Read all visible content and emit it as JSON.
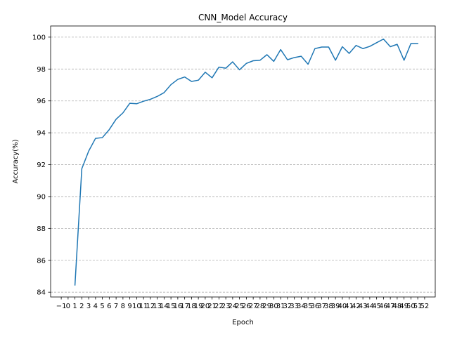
{
  "chart_data": {
    "type": "line",
    "title": "CNN_Model Accuracy",
    "xlabel": "Epoch",
    "ylabel": "Accuracy(%)",
    "xlim": [
      -2.55,
      53.55
    ],
    "ylim": [
      83.7,
      100.7
    ],
    "xticks": [
      -1,
      0,
      1,
      2,
      3,
      4,
      5,
      6,
      7,
      8,
      9,
      10,
      11,
      12,
      13,
      14,
      15,
      16,
      17,
      18,
      19,
      20,
      21,
      22,
      23,
      24,
      25,
      26,
      27,
      28,
      29,
      30,
      31,
      32,
      33,
      34,
      35,
      36,
      37,
      38,
      39,
      40,
      41,
      42,
      43,
      44,
      45,
      46,
      47,
      48,
      49,
      50,
      51,
      52
    ],
    "xtick_labels": [
      "−1",
      "0",
      "1",
      "2",
      "3",
      "4",
      "5",
      "6",
      "7",
      "8",
      "9",
      "10",
      "11",
      "12",
      "13",
      "14",
      "15",
      "16",
      "17",
      "18",
      "19",
      "20",
      "21",
      "22",
      "23",
      "24",
      "25",
      "26",
      "27",
      "28",
      "29",
      "30",
      "31",
      "32",
      "33",
      "34",
      "35",
      "36",
      "37",
      "38",
      "39",
      "40",
      "41",
      "42",
      "43",
      "44",
      "45",
      "46",
      "47",
      "48",
      "49",
      "50",
      "51",
      "52"
    ],
    "yticks": [
      84,
      86,
      88,
      90,
      92,
      94,
      96,
      98,
      100
    ],
    "ytick_labels": [
      "84",
      "86",
      "88",
      "90",
      "92",
      "94",
      "96",
      "98",
      "100"
    ],
    "grid": {
      "x": false,
      "y": true,
      "style": "dashed"
    },
    "colors": {
      "line": "#1f77b4",
      "grid": "#b0b0b0",
      "axis": "#000000"
    },
    "series": [
      {
        "x": [
          1,
          2,
          3,
          4,
          5,
          6,
          7,
          8,
          9,
          10,
          11,
          12,
          13,
          14,
          15,
          16,
          17,
          18,
          19,
          20,
          21,
          22,
          23,
          24,
          25,
          26,
          27,
          28,
          29,
          30,
          31,
          32,
          33,
          34,
          35,
          36,
          37,
          38,
          39,
          40,
          41,
          42,
          43,
          44,
          45,
          46,
          47,
          48,
          49,
          50,
          51
        ],
        "values": [
          84.45,
          91.75,
          92.85,
          93.65,
          93.7,
          94.2,
          94.85,
          95.25,
          95.85,
          95.82,
          95.98,
          96.1,
          96.28,
          96.52,
          97.02,
          97.35,
          97.5,
          97.22,
          97.3,
          97.8,
          97.45,
          98.12,
          98.05,
          98.45,
          97.95,
          98.35,
          98.52,
          98.55,
          98.9,
          98.48,
          99.22,
          98.58,
          98.72,
          98.8,
          98.3,
          99.28,
          99.38,
          99.38,
          98.55,
          99.4,
          98.98,
          99.48,
          99.28,
          99.42,
          99.65,
          99.88,
          99.4,
          99.55,
          98.55,
          99.6,
          99.6
        ]
      }
    ]
  }
}
